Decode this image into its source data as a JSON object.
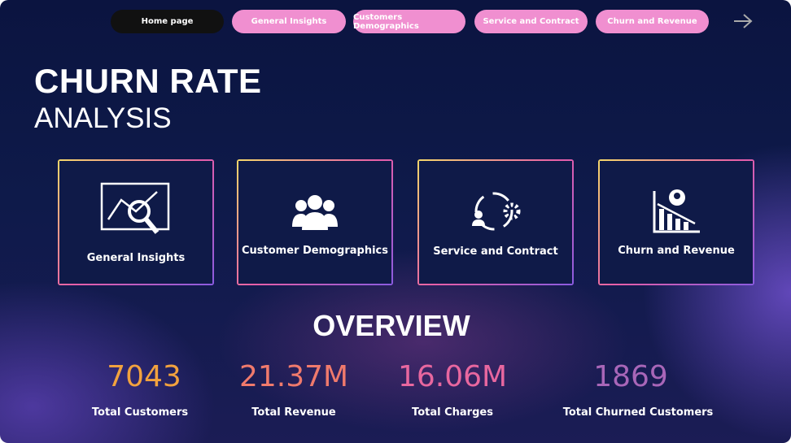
{
  "nav": {
    "tabs": [
      "Home page",
      "General Insights",
      "Customers Demographics",
      "Service and Contract",
      "Churn and Revenue"
    ]
  },
  "header": {
    "title": "CHURN RATE",
    "subtitle": "ANALYSIS"
  },
  "cards": [
    {
      "label": "General Insights"
    },
    {
      "label": "Customer Demographics"
    },
    {
      "label": "Service and Contract"
    },
    {
      "label": "Churn and Revenue"
    }
  ],
  "overview": {
    "title": "OVERVIEW",
    "kpis": [
      {
        "value": "7043",
        "label": "Total Customers"
      },
      {
        "value": "21.37M",
        "label": "Total Revenue"
      },
      {
        "value": "16.06M",
        "label": "Total Charges"
      },
      {
        "value": "1869",
        "label": "Total Churned Customers"
      }
    ]
  }
}
